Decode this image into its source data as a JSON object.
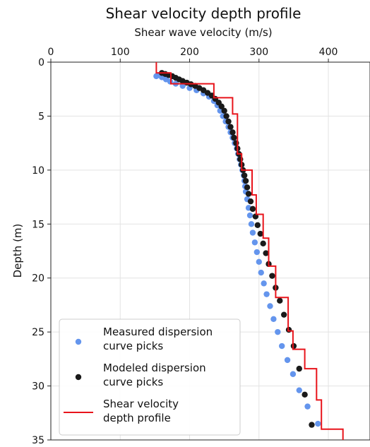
{
  "chart_data": {
    "type": "scatter",
    "title": "Shear velocity depth profile",
    "xlabel": "Shear wave velocity (m/s)",
    "ylabel": "Depth (m)",
    "xlim": [
      0,
      460
    ],
    "ylim": [
      35,
      0
    ],
    "x_axis_position": "top",
    "y_inverted": true,
    "grid": true,
    "x_ticks": [
      "0",
      "100",
      "200",
      "300",
      "400"
    ],
    "y_ticks": [
      "0",
      "5",
      "10",
      "15",
      "20",
      "25",
      "30",
      "35"
    ],
    "x_tick_values": [
      0,
      100,
      200,
      300,
      400
    ],
    "y_tick_values": [
      0,
      5,
      10,
      15,
      20,
      25,
      30,
      35
    ],
    "legend_position": "bottom-left",
    "series": [
      {
        "name": "Measured dispersion curve picks",
        "kind": "scatter",
        "color": "#6495ED",
        "points": [
          [
            152,
            1.3
          ],
          [
            155,
            1.2
          ],
          [
            160,
            1.4
          ],
          [
            166,
            1.6
          ],
          [
            172,
            1.8
          ],
          [
            180,
            2.0
          ],
          [
            190,
            2.2
          ],
          [
            200,
            2.4
          ],
          [
            210,
            2.6
          ],
          [
            220,
            2.9
          ],
          [
            228,
            3.2
          ],
          [
            235,
            3.6
          ],
          [
            240,
            4.0
          ],
          [
            244,
            4.5
          ],
          [
            248,
            5.0
          ],
          [
            252,
            5.5
          ],
          [
            256,
            6.0
          ],
          [
            259,
            6.5
          ],
          [
            262,
            7.0
          ],
          [
            265,
            7.5
          ],
          [
            268,
            8.0
          ],
          [
            270,
            8.5
          ],
          [
            272,
            9.0
          ],
          [
            274,
            9.5
          ],
          [
            276,
            10.0
          ],
          [
            278,
            10.5
          ],
          [
            279,
            11.0
          ],
          [
            280,
            11.5
          ],
          [
            281,
            12.0
          ],
          [
            283,
            12.7
          ],
          [
            285,
            13.5
          ],
          [
            287,
            14.2
          ],
          [
            289,
            15.0
          ],
          [
            291,
            15.8
          ],
          [
            294,
            16.7
          ],
          [
            297,
            17.6
          ],
          [
            300,
            18.5
          ],
          [
            303,
            19.5
          ],
          [
            307,
            20.5
          ],
          [
            311,
            21.5
          ],
          [
            316,
            22.6
          ],
          [
            321,
            23.8
          ],
          [
            327,
            25.0
          ],
          [
            333,
            26.3
          ],
          [
            341,
            27.6
          ],
          [
            349,
            28.9
          ],
          [
            358,
            30.4
          ],
          [
            370,
            31.9
          ],
          [
            385,
            33.5
          ]
        ]
      },
      {
        "name": "Modeled dispersion curve picks",
        "kind": "scatter",
        "color": "#1a1a1a",
        "points": [
          [
            160,
            1.0
          ],
          [
            165,
            1.1
          ],
          [
            170,
            1.2
          ],
          [
            175,
            1.3
          ],
          [
            180,
            1.45
          ],
          [
            185,
            1.6
          ],
          [
            190,
            1.75
          ],
          [
            196,
            1.9
          ],
          [
            202,
            2.05
          ],
          [
            208,
            2.2
          ],
          [
            214,
            2.4
          ],
          [
            220,
            2.6
          ],
          [
            226,
            2.85
          ],
          [
            232,
            3.1
          ],
          [
            237,
            3.4
          ],
          [
            242,
            3.75
          ],
          [
            246,
            4.1
          ],
          [
            250,
            4.5
          ],
          [
            253,
            5.0
          ],
          [
            256,
            5.5
          ],
          [
            259,
            6.0
          ],
          [
            262,
            6.5
          ],
          [
            264,
            7.0
          ],
          [
            267,
            7.5
          ],
          [
            269,
            8.0
          ],
          [
            271,
            8.5
          ],
          [
            273,
            9.0
          ],
          [
            275,
            9.5
          ],
          [
            277,
            10.0
          ],
          [
            279,
            10.5
          ],
          [
            281,
            11.0
          ],
          [
            283,
            11.6
          ],
          [
            285,
            12.2
          ],
          [
            288,
            12.9
          ],
          [
            291,
            13.6
          ],
          [
            295,
            14.3
          ],
          [
            298,
            15.1
          ],
          [
            302,
            15.9
          ],
          [
            306,
            16.8
          ],
          [
            310,
            17.7
          ],
          [
            314,
            18.7
          ],
          [
            319,
            19.8
          ],
          [
            324,
            20.9
          ],
          [
            330,
            22.1
          ],
          [
            336,
            23.4
          ],
          [
            343,
            24.8
          ],
          [
            350,
            26.3
          ],
          [
            358,
            28.4
          ],
          [
            366,
            30.8
          ],
          [
            376,
            33.6
          ]
        ]
      },
      {
        "name": "Shear velocity depth profile",
        "kind": "step",
        "color": "#e8141b",
        "points": [
          [
            152,
            0
          ],
          [
            152,
            1
          ],
          [
            173,
            1
          ],
          [
            173,
            2
          ],
          [
            235,
            2
          ],
          [
            235,
            3.3
          ],
          [
            262,
            3.3
          ],
          [
            262,
            4.8
          ],
          [
            269,
            4.8
          ],
          [
            269,
            8.5
          ],
          [
            275,
            8.5
          ],
          [
            275,
            10.0
          ],
          [
            290,
            10.0
          ],
          [
            290,
            12.3
          ],
          [
            296,
            12.3
          ],
          [
            296,
            14.1
          ],
          [
            306,
            14.1
          ],
          [
            306,
            16.3
          ],
          [
            314,
            16.3
          ],
          [
            314,
            18.9
          ],
          [
            324,
            18.9
          ],
          [
            324,
            21.8
          ],
          [
            342,
            21.8
          ],
          [
            342,
            24.9
          ],
          [
            349,
            24.9
          ],
          [
            349,
            26.6
          ],
          [
            366,
            26.6
          ],
          [
            366,
            28.4
          ],
          [
            383,
            28.4
          ],
          [
            383,
            31.3
          ],
          [
            390,
            31.3
          ],
          [
            390,
            34.0
          ],
          [
            421,
            34.0
          ],
          [
            421,
            35
          ]
        ]
      }
    ],
    "legend": [
      {
        "line1": "Measured dispersion",
        "line2": "curve picks"
      },
      {
        "line1": "Modeled dispersion",
        "line2": "curve picks"
      },
      {
        "line1": "Shear velocity",
        "line2": "depth profile"
      }
    ]
  }
}
